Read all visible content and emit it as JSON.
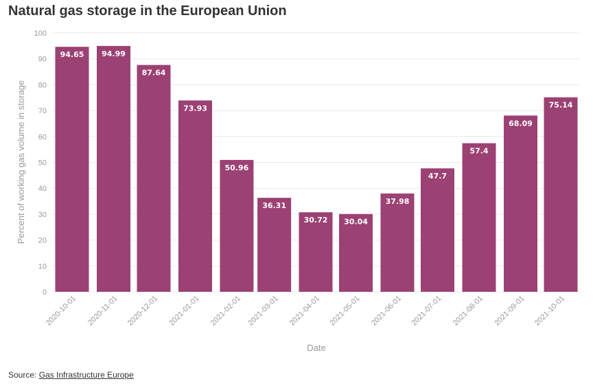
{
  "title": "Natural gas storage in the European Union",
  "source": {
    "prefix": "Source:",
    "link_text": "Gas Infrastructure Europe"
  },
  "colors": {
    "bar": "#9c4173",
    "grid": "#e8e8e8",
    "tick": "#999999"
  },
  "chart_data": {
    "type": "bar",
    "title": "Natural gas storage in the European Union",
    "xlabel": "Date",
    "ylabel": "Percent of working gas volume in storage",
    "ylim": [
      0,
      100
    ],
    "yticks": [
      0,
      10,
      20,
      30,
      40,
      50,
      60,
      70,
      80,
      90,
      100
    ],
    "grid": true,
    "legend": "none",
    "categories": [
      "2020-10-01",
      "2020-11-01",
      "2020-12-01",
      "2021-01-01",
      "2021-02-01",
      "2021-03-01",
      "2021-04-01",
      "2021-05-01",
      "2021-06-01",
      "2021-07-01",
      "2021-08-01",
      "2021-09-01",
      "2021-10-01"
    ],
    "values": [
      94.65,
      94.99,
      87.64,
      73.93,
      50.96,
      36.31,
      30.72,
      30.04,
      37.98,
      47.7,
      57.4,
      68.09,
      75.14
    ],
    "value_labels": [
      "94.65",
      "94.99",
      "87.64",
      "73.93",
      "50.96",
      "36.31",
      "30.72",
      "30.04",
      "37.98",
      "47.7",
      "57.4",
      "68.09",
      "75.14"
    ],
    "dates_ms": [
      1601510400000,
      1604188800000,
      1606780800000,
      1609459200000,
      1612137600000,
      1614556800000,
      1617235200000,
      1619827200000,
      1622505600000,
      1625097600000,
      1627776000000,
      1630454400000,
      1633046400000
    ]
  }
}
